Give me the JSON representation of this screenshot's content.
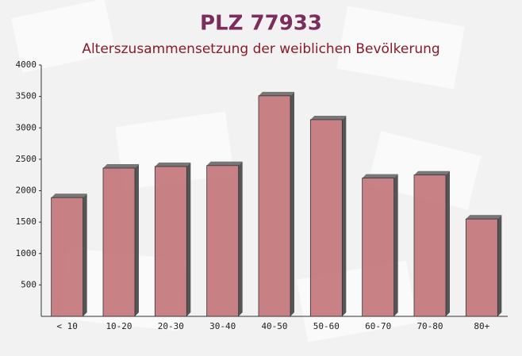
{
  "chart_data": {
    "type": "bar",
    "title": "PLZ 77933",
    "subtitle": "Alterszusammensetzung der weiblichen Bevölkerung",
    "categories": [
      "< 10",
      "10-20",
      "20-30",
      "30-40",
      "40-50",
      "50-60",
      "60-70",
      "70-80",
      "80+"
    ],
    "values": [
      1890,
      2360,
      2385,
      2400,
      3510,
      3130,
      2200,
      2250,
      1550
    ],
    "color": "#c27479",
    "ylim": [
      0,
      4000
    ],
    "yticks": [
      500,
      1000,
      1500,
      2000,
      2500,
      3000,
      3500,
      4000
    ],
    "grid": false
  }
}
